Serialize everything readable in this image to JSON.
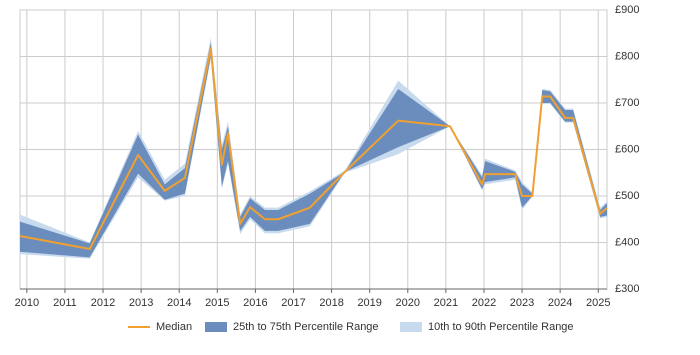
{
  "chart_data": {
    "type": "line",
    "x": [
      2009.82,
      2011.65,
      2012.92,
      2013.62,
      2014.15,
      2014.83,
      2015.12,
      2015.28,
      2015.6,
      2015.86,
      2016.25,
      2016.6,
      2017.43,
      2018.35,
      2019.75,
      2021.11,
      2021.95,
      2022.03,
      2022.82,
      2023.0,
      2023.27,
      2023.53,
      2023.74,
      2024.13,
      2024.34,
      2025.05,
      2025.23
    ],
    "series": [
      {
        "name": "Median",
        "color": "#f0a030",
        "values": [
          414,
          386,
          588,
          511,
          539,
          818,
          567,
          635,
          440,
          476,
          450,
          450,
          475,
          552,
          662,
          650,
          525,
          547,
          547,
          500,
          500,
          714,
          714,
          668,
          668,
          462,
          474
        ]
      }
    ],
    "bands": [
      {
        "name": "10th to 90th Percentile Range",
        "color": "#c8daee",
        "lower": [
          375,
          365,
          540,
          490,
          500,
          795,
          515,
          570,
          418,
          450,
          420,
          420,
          435,
          550,
          590,
          650,
          512,
          525,
          535,
          470,
          498,
          698,
          698,
          658,
          658,
          452,
          455
        ],
        "upper": [
          460,
          400,
          640,
          535,
          570,
          840,
          610,
          660,
          460,
          500,
          475,
          475,
          510,
          555,
          748,
          650,
          545,
          580,
          555,
          530,
          508,
          730,
          728,
          688,
          688,
          475,
          488
        ]
      },
      {
        "name": "25th to 75th Percentile Range",
        "color": "#6a8dbd",
        "lower": [
          380,
          368,
          548,
          492,
          505,
          800,
          520,
          575,
          425,
          455,
          425,
          425,
          440,
          552,
          605,
          650,
          515,
          530,
          540,
          475,
          500,
          700,
          700,
          660,
          660,
          455,
          458
        ],
        "upper": [
          445,
          398,
          632,
          525,
          560,
          830,
          600,
          650,
          455,
          495,
          470,
          470,
          505,
          552,
          730,
          650,
          540,
          575,
          552,
          525,
          505,
          728,
          725,
          685,
          685,
          470,
          485
        ]
      }
    ],
    "xlim": [
      2009.82,
      2025.23
    ],
    "xticks": [
      2010,
      2011,
      2012,
      2013,
      2014,
      2015,
      2016,
      2017,
      2018,
      2019,
      2020,
      2021,
      2022,
      2023,
      2024,
      2025
    ],
    "ylim": [
      300,
      900
    ],
    "yticks": [
      {
        "value": 300,
        "label": "£300"
      },
      {
        "value": 400,
        "label": "£400"
      },
      {
        "value": 500,
        "label": "£500"
      },
      {
        "value": 600,
        "label": "£600"
      },
      {
        "value": 700,
        "label": "£700"
      },
      {
        "value": 800,
        "label": "£800"
      },
      {
        "value": 900,
        "label": "£900"
      }
    ],
    "grid": true
  }
}
